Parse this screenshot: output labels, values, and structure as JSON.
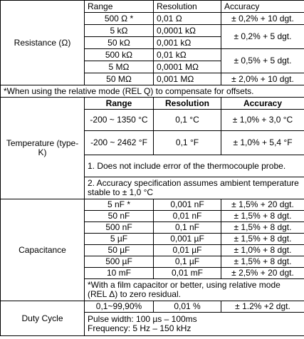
{
  "resistance": {
    "label": "Resistance (Ω)",
    "header": [
      "Range",
      "Resolution",
      "Accuracy"
    ],
    "rows": [
      [
        "500 Ω *",
        "0,01 Ω"
      ],
      [
        "5 kΩ",
        "0,0001 kΩ"
      ],
      [
        "50 kΩ",
        "0,001 kΩ"
      ],
      [
        "500 kΩ",
        "0,01 kΩ"
      ],
      [
        "5 MΩ",
        "0,0001 MΩ"
      ],
      [
        "50 MΩ",
        "0,001 MΩ"
      ]
    ],
    "accuracy": [
      "± 0,2% + 10 dgt.",
      "± 0,2% +  5 dgt.",
      "± 0,5% +  5 dgt.",
      "± 2,0% + 10 dgt."
    ],
    "note": "*When using the relative mode (REL Q) to compensate for offsets."
  },
  "temperature": {
    "label": "Temperature (type-K)",
    "header": [
      "Range",
      "Resolution",
      "Accuracy"
    ],
    "rows": [
      [
        "-200 ~ 1350 °C",
        "0,1 °C",
        "± 1,0% + 3,0 °C"
      ],
      [
        "-200 ~ 2462 °F",
        "0,1 °F",
        "± 1,0% + 5,4 °F"
      ]
    ],
    "notes": [
      "1. Does not include error of the thermocouple probe.",
      "2. Accuracy specification assumes ambient temperature stable to ± 1,0 °C"
    ]
  },
  "capacitance": {
    "label": "Capacitance",
    "rows": [
      [
        "5 nF *",
        "0,001 nF",
        "± 1,5% + 20 dgt."
      ],
      [
        "50 nF",
        "0,01 nF",
        "± 1,5% +  8 dgt."
      ],
      [
        "500 nF",
        "0,1 nF",
        "± 1,5% +  8 dgt."
      ],
      [
        "5 µF",
        "0,001 µF",
        "± 1,5% +  8 dgt."
      ],
      [
        "50 µF",
        "0,01 µF",
        "± 1,0% +  8 dgt."
      ],
      [
        "500 µF",
        "0,1 µF",
        "± 1,5% +  8 dgt."
      ],
      [
        "10 mF",
        "0,01 mF",
        "± 2,5% + 20 dgt."
      ]
    ],
    "note": "*With a film capacitor or better, using relative mode (REL Δ) to zero residual."
  },
  "duty_cycle": {
    "label": "Duty Cycle",
    "row": [
      "0,1~99,90%",
      "0,01 %",
      "± 1.2% +2 dgt."
    ],
    "lines": [
      "Pulse width: 100 µs – 100ms",
      "Frequency: 5 Hz – 150 kHz"
    ]
  }
}
